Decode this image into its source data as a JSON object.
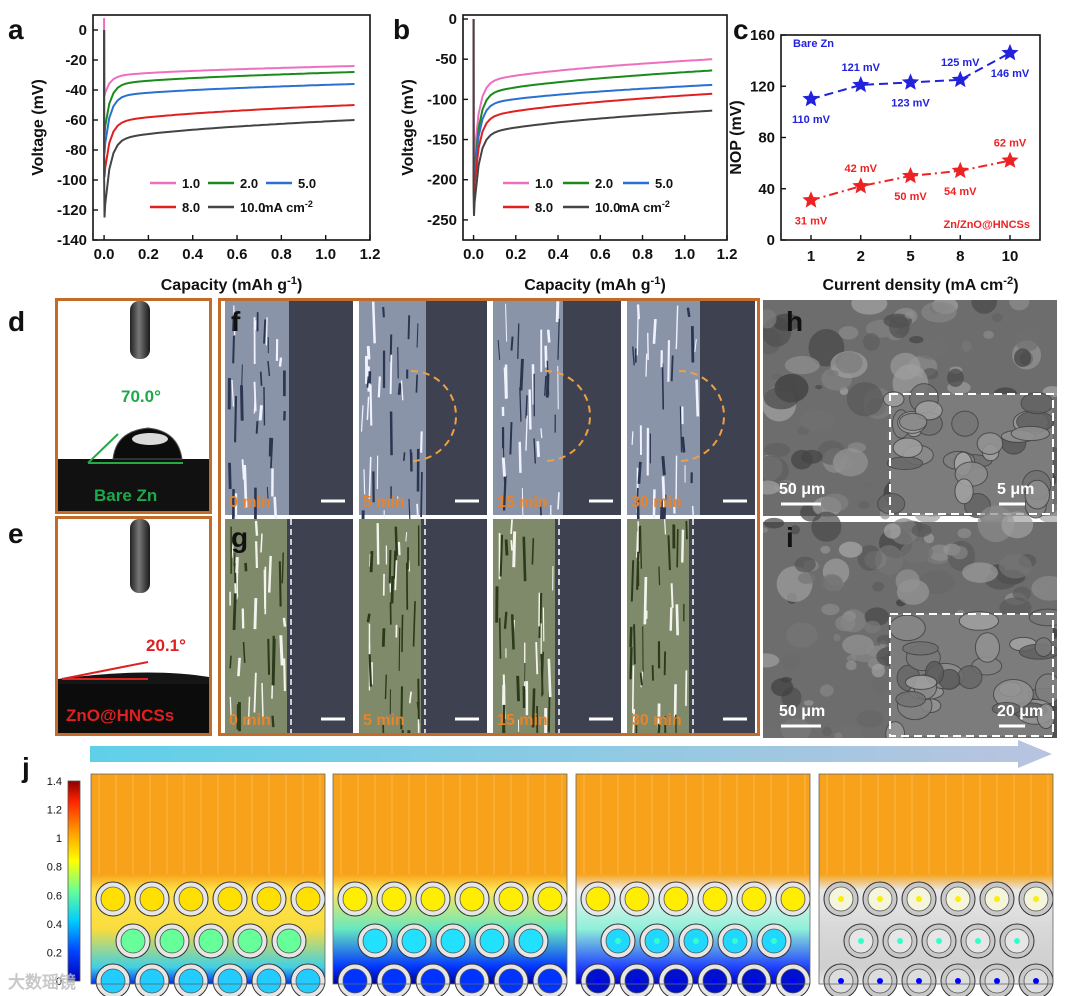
{
  "panels": {
    "a": "a",
    "b": "b",
    "c": "c",
    "d": "d",
    "e": "e",
    "f": "f",
    "g": "g",
    "h": "h",
    "i": "i",
    "j": "j"
  },
  "chart_data": [
    {
      "id": "a",
      "type": "line",
      "xlabel": "Capacity (mAh g",
      "xlabel_sup": "-1",
      "xlabel_end": ")",
      "ylabel": "Voltage (mV)",
      "xlim": [
        -0.05,
        1.2
      ],
      "ylim": [
        -140,
        10
      ],
      "xticks": [
        0.0,
        0.2,
        0.4,
        0.6,
        0.8,
        1.0,
        1.2
      ],
      "xtick_labels": [
        "0.0",
        "0.2",
        "0.4",
        "0.6",
        "0.8",
        "1.0",
        "1.2"
      ],
      "yticks": [
        0,
        -20,
        -40,
        -60,
        -80,
        -100,
        -120,
        -140
      ],
      "ytick_labels": [
        "0",
        "-20",
        "-40",
        "-60",
        "-80",
        "-100",
        "-120",
        "-140"
      ],
      "legend_position": "bottom-right",
      "legend_unit": "mA cm",
      "legend_unit_sup": "-2",
      "series": [
        {
          "name": "1.0",
          "color": "#ee6fc0",
          "spike_to": 8,
          "dip_to": -44,
          "plateau_start": -32,
          "plateau_end": -24
        },
        {
          "name": "2.0",
          "color": "#1a8a1a",
          "spike_to": -60,
          "dip_to": -70,
          "plateau_start": -38,
          "plateau_end": -28
        },
        {
          "name": "5.0",
          "color": "#2a70d0",
          "spike_to": -70,
          "dip_to": -82,
          "plateau_start": -46,
          "plateau_end": -36
        },
        {
          "name": "8.0",
          "color": "#e02020",
          "spike_to": -80,
          "dip_to": -98,
          "plateau_start": -64,
          "plateau_end": -50
        },
        {
          "name": "10.0",
          "color": "#444444",
          "spike_to": -95,
          "dip_to": -125,
          "plateau_start": -76,
          "plateau_end": -60
        }
      ]
    },
    {
      "id": "b",
      "type": "line",
      "xlabel": "Capacity (mAh g",
      "xlabel_sup": "-1",
      "xlabel_end": ")",
      "ylabel": "Voltage (mV)",
      "xlim": [
        -0.05,
        1.2
      ],
      "ylim": [
        -275,
        5
      ],
      "xticks": [
        0.0,
        0.2,
        0.4,
        0.6,
        0.8,
        1.0,
        1.2
      ],
      "xtick_labels": [
        "0.0",
        "0.2",
        "0.4",
        "0.6",
        "0.8",
        "1.0",
        "1.2"
      ],
      "yticks": [
        0,
        -50,
        -100,
        -150,
        -200,
        -250
      ],
      "ytick_labels": [
        "0",
        "-50",
        "-100",
        "-150",
        "-200",
        "-250"
      ],
      "legend_position": "bottom-right",
      "legend_unit": "mA cm",
      "legend_unit_sup": "-2",
      "series": [
        {
          "name": "1.0",
          "color": "#ee6fc0",
          "spike_to": 0,
          "dip_to": -182,
          "plateau_start": -85,
          "plateau_end": -50
        },
        {
          "name": "2.0",
          "color": "#1a8a1a",
          "spike_to": -185,
          "dip_to": -205,
          "plateau_start": -100,
          "plateau_end": -64
        },
        {
          "name": "5.0",
          "color": "#2a70d0",
          "spike_to": -190,
          "dip_to": -210,
          "plateau_start": -112,
          "plateau_end": -82
        },
        {
          "name": "8.0",
          "color": "#e02020",
          "spike_to": -200,
          "dip_to": -222,
          "plateau_start": -130,
          "plateau_end": -93
        },
        {
          "name": "10.0",
          "color": "#444444",
          "spike_to": -215,
          "dip_to": -245,
          "plateau_start": -150,
          "plateau_end": -114
        }
      ]
    },
    {
      "id": "c",
      "type": "line",
      "xlabel": "Current density (mA cm",
      "xlabel_sup": "-2",
      "xlabel_end": ")",
      "ylabel": "NOP (mV)",
      "categories": [
        "1",
        "2",
        "5",
        "8",
        "10"
      ],
      "ylim": [
        0,
        160
      ],
      "yticks": [
        0,
        40,
        80,
        120,
        160
      ],
      "ytick_labels": [
        "0",
        "40",
        "80",
        "120",
        "160"
      ],
      "series": [
        {
          "name": "Bare Zn",
          "color": "#2222dd",
          "values": [
            110,
            121,
            123,
            125,
            146
          ],
          "labels": [
            "110 mV",
            "121 mV",
            "123 mV",
            "125 mV",
            "146 mV"
          ],
          "label_side": [
            "below",
            "above",
            "below",
            "above",
            "below"
          ]
        },
        {
          "name": "Zn/ZnO@HNCSs",
          "color": "#ee2222",
          "values": [
            31,
            42,
            50,
            54,
            62
          ],
          "labels": [
            "31 mV",
            "42 mV",
            "50 mV",
            "54 mV",
            "62 mV"
          ],
          "label_side": [
            "below",
            "above",
            "below",
            "below",
            "above"
          ]
        }
      ]
    },
    {
      "id": "j",
      "type": "heatmap",
      "colorbar_min": 0,
      "colorbar_max": 1.4,
      "colorbar_ticks": [
        0,
        0.2,
        0.4,
        0.6,
        0.8,
        1,
        1.2,
        1.4
      ],
      "colorbar_tick_labels": [
        "0",
        "0.2",
        "0.4",
        "0.6",
        "0.8",
        "1",
        "1.2",
        "1.4"
      ]
    }
  ],
  "panel_d": {
    "angle": "70.0°",
    "label": "Bare Zn"
  },
  "panel_e": {
    "angle": "20.1°",
    "label": "ZnO@HNCSs"
  },
  "panel_f": {
    "times": [
      "0 min",
      "5 min",
      "15 min",
      "30 min"
    ]
  },
  "panel_g": {
    "times": [
      "0 min",
      "5 min",
      "15 min",
      "30 min"
    ]
  },
  "panel_h": {
    "scale_main": "50 μm",
    "scale_inset": "5 μm"
  },
  "panel_i": {
    "scale_main": "50 μm",
    "scale_inset": "20 μm"
  },
  "watermark": "大数瑶镜",
  "colors": {
    "frame": "#c46b2a",
    "optical_bg": "#3e4250",
    "ring_dashed": "#f0a040"
  }
}
